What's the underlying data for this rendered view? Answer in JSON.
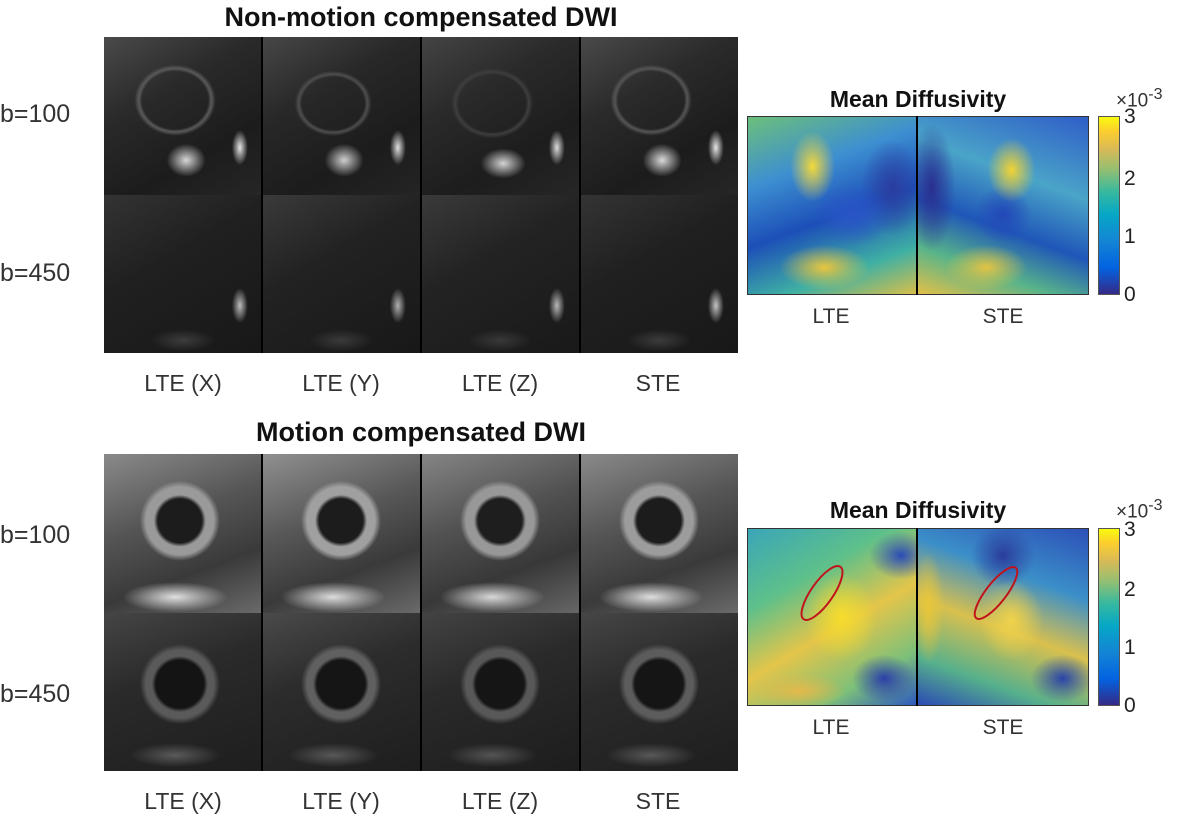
{
  "panels": [
    {
      "title": "Non-motion compensated DWI",
      "row_labels": [
        "b=100",
        "b=450"
      ],
      "col_labels": [
        "LTE (X)",
        "LTE (Y)",
        "LTE (Z)",
        "STE"
      ],
      "md": {
        "title": "Mean Diffusivity",
        "cols": [
          "LTE",
          "STE"
        ],
        "ticks": [
          "0",
          "1",
          "2",
          "3"
        ],
        "exponent": "×10",
        "exponent_sup": "-3"
      }
    },
    {
      "title": "Motion compensated DWI",
      "row_labels": [
        "b=100",
        "b=450"
      ],
      "col_labels": [
        "LTE (X)",
        "LTE (Y)",
        "LTE (Z)",
        "STE"
      ],
      "md": {
        "title": "Mean Diffusivity",
        "cols": [
          "LTE",
          "STE"
        ],
        "ticks": [
          "0",
          "1",
          "2",
          "3"
        ],
        "exponent": "×10",
        "exponent_sup": "-3"
      }
    }
  ]
}
